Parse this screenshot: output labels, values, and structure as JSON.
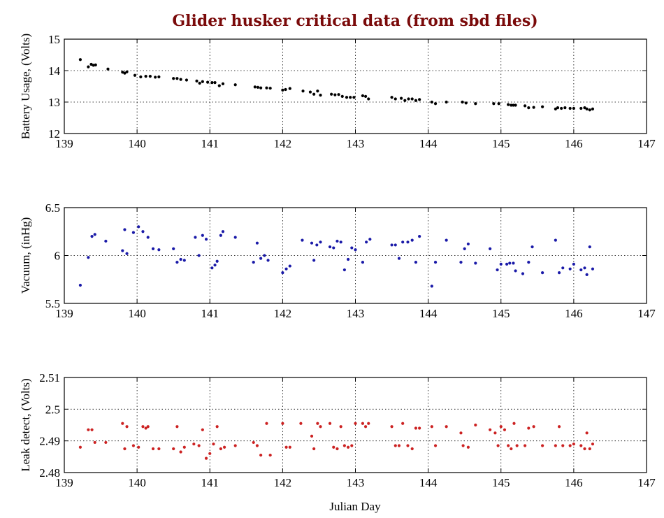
{
  "title": "Glider husker critical data (from sbd files)",
  "xlabel": "Julian Day",
  "chart_data": [
    {
      "type": "scatter",
      "ylabel": "Battery Usage, (Volts)",
      "color": "#000000",
      "xlim": [
        139,
        147
      ],
      "ylim": [
        12,
        15
      ],
      "xticks": [
        139,
        140,
        141,
        142,
        143,
        144,
        145,
        146,
        147
      ],
      "yticks": [
        12,
        13,
        14,
        15
      ],
      "grid": "dotted",
      "x": [
        139.22,
        139.33,
        139.37,
        139.4,
        139.43,
        139.6,
        139.8,
        139.83,
        139.86,
        139.97,
        140.05,
        140.12,
        140.18,
        140.25,
        140.3,
        140.5,
        140.55,
        140.6,
        140.68,
        140.82,
        140.86,
        140.9,
        140.97,
        141.03,
        141.07,
        141.13,
        141.18,
        141.35,
        141.62,
        141.66,
        141.7,
        141.78,
        141.83,
        142.0,
        142.04,
        142.1,
        142.28,
        142.38,
        142.43,
        142.48,
        142.52,
        142.67,
        142.72,
        142.77,
        142.82,
        142.88,
        142.93,
        142.98,
        143.1,
        143.14,
        143.18,
        143.5,
        143.55,
        143.63,
        143.68,
        143.73,
        143.78,
        143.83,
        143.88,
        144.05,
        144.1,
        144.25,
        144.47,
        144.52,
        144.65,
        144.9,
        144.97,
        145.1,
        145.14,
        145.17,
        145.2,
        145.33,
        145.38,
        145.45,
        145.57,
        145.75,
        145.78,
        145.83,
        145.88,
        145.95,
        146.0,
        146.1,
        146.15,
        146.18,
        146.22,
        146.26
      ],
      "y": [
        14.35,
        14.12,
        14.2,
        14.17,
        14.18,
        14.05,
        13.95,
        13.92,
        13.96,
        13.85,
        13.8,
        13.82,
        13.82,
        13.79,
        13.8,
        13.75,
        13.75,
        13.72,
        13.7,
        13.67,
        13.6,
        13.65,
        13.63,
        13.62,
        13.62,
        13.52,
        13.58,
        13.55,
        13.48,
        13.47,
        13.45,
        13.45,
        13.44,
        13.38,
        13.4,
        13.43,
        13.35,
        13.32,
        13.25,
        13.35,
        13.22,
        13.25,
        13.23,
        13.24,
        13.18,
        13.15,
        13.15,
        13.15,
        13.2,
        13.18,
        13.1,
        13.15,
        13.1,
        13.12,
        13.05,
        13.1,
        13.1,
        13.05,
        13.08,
        13.0,
        12.95,
        13.0,
        13.0,
        12.97,
        12.95,
        12.95,
        12.95,
        12.92,
        12.9,
        12.9,
        12.9,
        12.88,
        12.82,
        12.83,
        12.85,
        12.78,
        12.82,
        12.8,
        12.82,
        12.8,
        12.8,
        12.8,
        12.82,
        12.78,
        12.75,
        12.78
      ]
    },
    {
      "type": "scatter",
      "ylabel": "Vacuum, (inHg)",
      "color": "#1a1aa8",
      "xlim": [
        139,
        147
      ],
      "ylim": [
        5.5,
        6.5
      ],
      "xticks": [
        139,
        140,
        141,
        142,
        143,
        144,
        145,
        146,
        147
      ],
      "yticks": [
        5.5,
        6,
        6.5
      ],
      "grid": "dotted",
      "x": [
        139.22,
        139.33,
        139.38,
        139.42,
        139.57,
        139.8,
        139.83,
        139.86,
        139.95,
        140.02,
        140.08,
        140.15,
        140.22,
        140.3,
        140.5,
        140.55,
        140.6,
        140.65,
        140.8,
        140.85,
        140.9,
        140.95,
        141.03,
        141.07,
        141.1,
        141.15,
        141.18,
        141.35,
        141.6,
        141.65,
        141.7,
        141.75,
        141.8,
        142.0,
        142.05,
        142.1,
        142.27,
        142.4,
        142.43,
        142.47,
        142.52,
        142.65,
        142.7,
        142.75,
        142.8,
        142.85,
        142.9,
        142.95,
        143.0,
        143.1,
        143.15,
        143.2,
        143.5,
        143.55,
        143.6,
        143.65,
        143.72,
        143.78,
        143.83,
        143.88,
        144.05,
        144.1,
        144.25,
        144.45,
        144.5,
        144.55,
        144.65,
        144.85,
        144.95,
        145.0,
        145.08,
        145.12,
        145.17,
        145.2,
        145.3,
        145.38,
        145.43,
        145.57,
        145.75,
        145.8,
        145.85,
        145.95,
        146.0,
        146.1,
        146.15,
        146.18,
        146.22,
        146.26
      ],
      "y": [
        5.69,
        5.98,
        6.2,
        6.22,
        6.15,
        6.05,
        6.27,
        6.02,
        6.24,
        6.3,
        6.25,
        6.19,
        6.07,
        6.06,
        6.07,
        5.93,
        5.96,
        5.95,
        6.19,
        6.0,
        6.21,
        6.17,
        5.87,
        5.9,
        5.94,
        6.21,
        6.25,
        6.19,
        5.93,
        6.13,
        5.97,
        6.0,
        5.95,
        5.82,
        5.86,
        5.89,
        6.16,
        6.13,
        5.95,
        6.11,
        6.14,
        6.09,
        6.08,
        6.15,
        6.14,
        5.85,
        5.96,
        6.08,
        6.06,
        5.93,
        6.14,
        6.17,
        6.11,
        6.11,
        5.97,
        6.14,
        6.14,
        6.16,
        5.93,
        6.2,
        5.68,
        5.93,
        6.16,
        5.93,
        6.07,
        6.12,
        5.92,
        6.07,
        5.85,
        5.91,
        5.91,
        5.92,
        5.92,
        5.84,
        5.81,
        5.93,
        6.09,
        5.82,
        6.16,
        5.82,
        5.87,
        5.86,
        5.91,
        5.85,
        5.87,
        5.8,
        6.09,
        5.86
      ]
    },
    {
      "type": "scatter",
      "ylabel": "Leak detect, (Volts)",
      "color": "#cc2222",
      "xlim": [
        139,
        147
      ],
      "ylim": [
        2.48,
        2.51
      ],
      "xticks": [
        139,
        140,
        141,
        142,
        143,
        144,
        145,
        146,
        147
      ],
      "yticks": [
        2.48,
        2.49,
        2.5,
        2.51
      ],
      "grid": "dotted",
      "x": [
        139.22,
        139.33,
        139.38,
        139.42,
        139.57,
        139.8,
        139.83,
        139.86,
        139.95,
        140.02,
        140.08,
        140.12,
        140.15,
        140.22,
        140.3,
        140.5,
        140.55,
        140.6,
        140.65,
        140.78,
        140.85,
        140.9,
        140.95,
        141.0,
        141.05,
        141.1,
        141.15,
        141.2,
        141.35,
        141.6,
        141.65,
        141.7,
        141.78,
        141.83,
        142.0,
        142.05,
        142.1,
        142.25,
        142.4,
        142.43,
        142.48,
        142.52,
        142.65,
        142.7,
        142.75,
        142.8,
        142.85,
        142.9,
        142.95,
        143.0,
        143.1,
        143.14,
        143.18,
        143.5,
        143.55,
        143.6,
        143.65,
        143.72,
        143.78,
        143.83,
        143.88,
        144.05,
        144.1,
        144.25,
        144.45,
        144.48,
        144.55,
        144.65,
        144.85,
        144.92,
        144.96,
        145.0,
        145.05,
        145.1,
        145.14,
        145.18,
        145.22,
        145.33,
        145.38,
        145.45,
        145.57,
        145.75,
        145.8,
        145.85,
        145.95,
        146.0,
        146.1,
        146.15,
        146.18,
        146.22,
        146.26
      ],
      "y": [
        2.488,
        2.4935,
        2.4935,
        2.4895,
        2.4895,
        2.4955,
        2.4875,
        2.4945,
        2.4885,
        2.488,
        2.4945,
        2.494,
        2.4945,
        2.4875,
        2.4875,
        2.4875,
        2.4945,
        2.4865,
        2.488,
        2.489,
        2.4885,
        2.4935,
        2.4845,
        2.486,
        2.489,
        2.4945,
        2.4875,
        2.488,
        2.4885,
        2.4895,
        2.4885,
        2.4855,
        2.4955,
        2.4855,
        2.4955,
        2.488,
        2.488,
        2.4955,
        2.4915,
        2.4875,
        2.4955,
        2.4945,
        2.4955,
        2.488,
        2.4875,
        2.4945,
        2.4885,
        2.488,
        2.4885,
        2.4955,
        2.4955,
        2.4945,
        2.4955,
        2.4945,
        2.4885,
        2.4885,
        2.4955,
        2.4885,
        2.4875,
        2.494,
        2.494,
        2.4945,
        2.4885,
        2.4945,
        2.4925,
        2.4885,
        2.488,
        2.495,
        2.4935,
        2.4925,
        2.4885,
        2.4945,
        2.4935,
        2.4885,
        2.4875,
        2.4955,
        2.4885,
        2.4885,
        2.494,
        2.4945,
        2.4885,
        2.4885,
        2.4945,
        2.4885,
        2.4885,
        2.489,
        2.4885,
        2.4875,
        2.4925,
        2.4875,
        2.489
      ]
    }
  ]
}
